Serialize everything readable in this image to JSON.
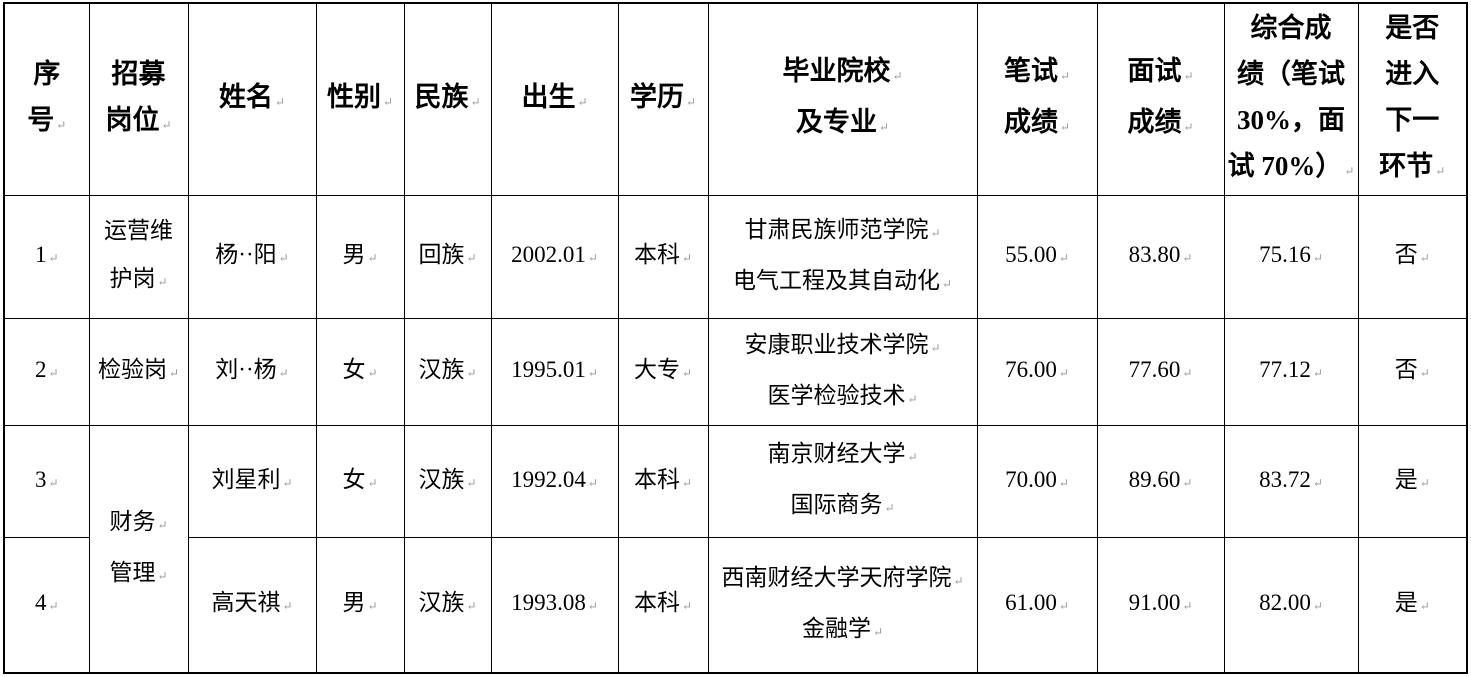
{
  "palette": {
    "background": "#ffffff",
    "grid_lines": "#000000",
    "text": "#000000",
    "paragraph_mark": "#9a9a9a"
  },
  "table": {
    "eop_mark": "↵",
    "columns": [
      {
        "id": "index",
        "header_lines": [
          "序",
          "号"
        ],
        "header_marks": "last"
      },
      {
        "id": "position",
        "header_lines": [
          "招募",
          "岗位"
        ],
        "header_marks": "last"
      },
      {
        "id": "name",
        "header_lines": [
          "姓名"
        ],
        "header_marks": "last"
      },
      {
        "id": "gender",
        "header_lines": [
          "性别"
        ],
        "header_marks": "last"
      },
      {
        "id": "ethnicity",
        "header_lines": [
          "民族"
        ],
        "header_marks": "last"
      },
      {
        "id": "birth",
        "header_lines": [
          "出生"
        ],
        "header_marks": "last"
      },
      {
        "id": "education",
        "header_lines": [
          "学历"
        ],
        "header_marks": "last"
      },
      {
        "id": "school",
        "header_lines": [
          "毕业院校",
          "及专业"
        ],
        "header_marks": "each"
      },
      {
        "id": "written",
        "header_lines": [
          "笔试",
          "成绩"
        ],
        "header_marks": "each"
      },
      {
        "id": "interview",
        "header_lines": [
          "面试",
          "成绩"
        ],
        "header_marks": "each"
      },
      {
        "id": "overall",
        "header_lines": [
          "综合成",
          "绩（笔试",
          "30%，面",
          "试 70%）"
        ],
        "header_marks": "last"
      },
      {
        "id": "next",
        "header_lines": [
          "是否",
          "进入",
          "下一",
          "环节"
        ],
        "header_marks": "last"
      }
    ],
    "rows": [
      {
        "index": "1",
        "position": {
          "lines": [
            "运营维",
            "护岗"
          ],
          "marks": "last"
        },
        "name": "杨··阳",
        "gender": "男",
        "ethnicity": "回族",
        "birth": "2002.01",
        "education": "本科",
        "school": {
          "lines": [
            "甘肃民族师范学院",
            "电气工程及其自动化"
          ],
          "marks": "each"
        },
        "written": "55.00",
        "interview": "83.80",
        "overall": "75.16",
        "next": "否"
      },
      {
        "index": "2",
        "position": {
          "lines": [
            "检验岗"
          ],
          "marks": "last"
        },
        "name": "刘··杨",
        "gender": "女",
        "ethnicity": "汉族",
        "birth": "1995.01",
        "education": "大专",
        "school": {
          "lines": [
            "安康职业技术学院",
            "医学检验技术"
          ],
          "marks": "each"
        },
        "written": "76.00",
        "interview": "77.60",
        "overall": "77.12",
        "next": "否"
      },
      {
        "index": "3",
        "position": {
          "lines": [
            "财务",
            "管理"
          ],
          "marks": "each",
          "rowspan": 2
        },
        "name": "刘星利",
        "gender": "女",
        "ethnicity": "汉族",
        "birth": "1992.04",
        "education": "本科",
        "school": {
          "lines": [
            "南京财经大学",
            "国际商务"
          ],
          "marks": "each"
        },
        "written": "70.00",
        "interview": "89.60",
        "overall": "83.72",
        "next": "是"
      },
      {
        "index": "4",
        "position": null,
        "name": "高天祺",
        "gender": "男",
        "ethnicity": "汉族",
        "birth": "1993.08",
        "education": "本科",
        "school": {
          "lines": [
            "西南财经大学天府学院",
            "金融学"
          ],
          "marks": "each"
        },
        "written": "61.00",
        "interview": "91.00",
        "overall": "82.00",
        "next": "是"
      }
    ]
  }
}
